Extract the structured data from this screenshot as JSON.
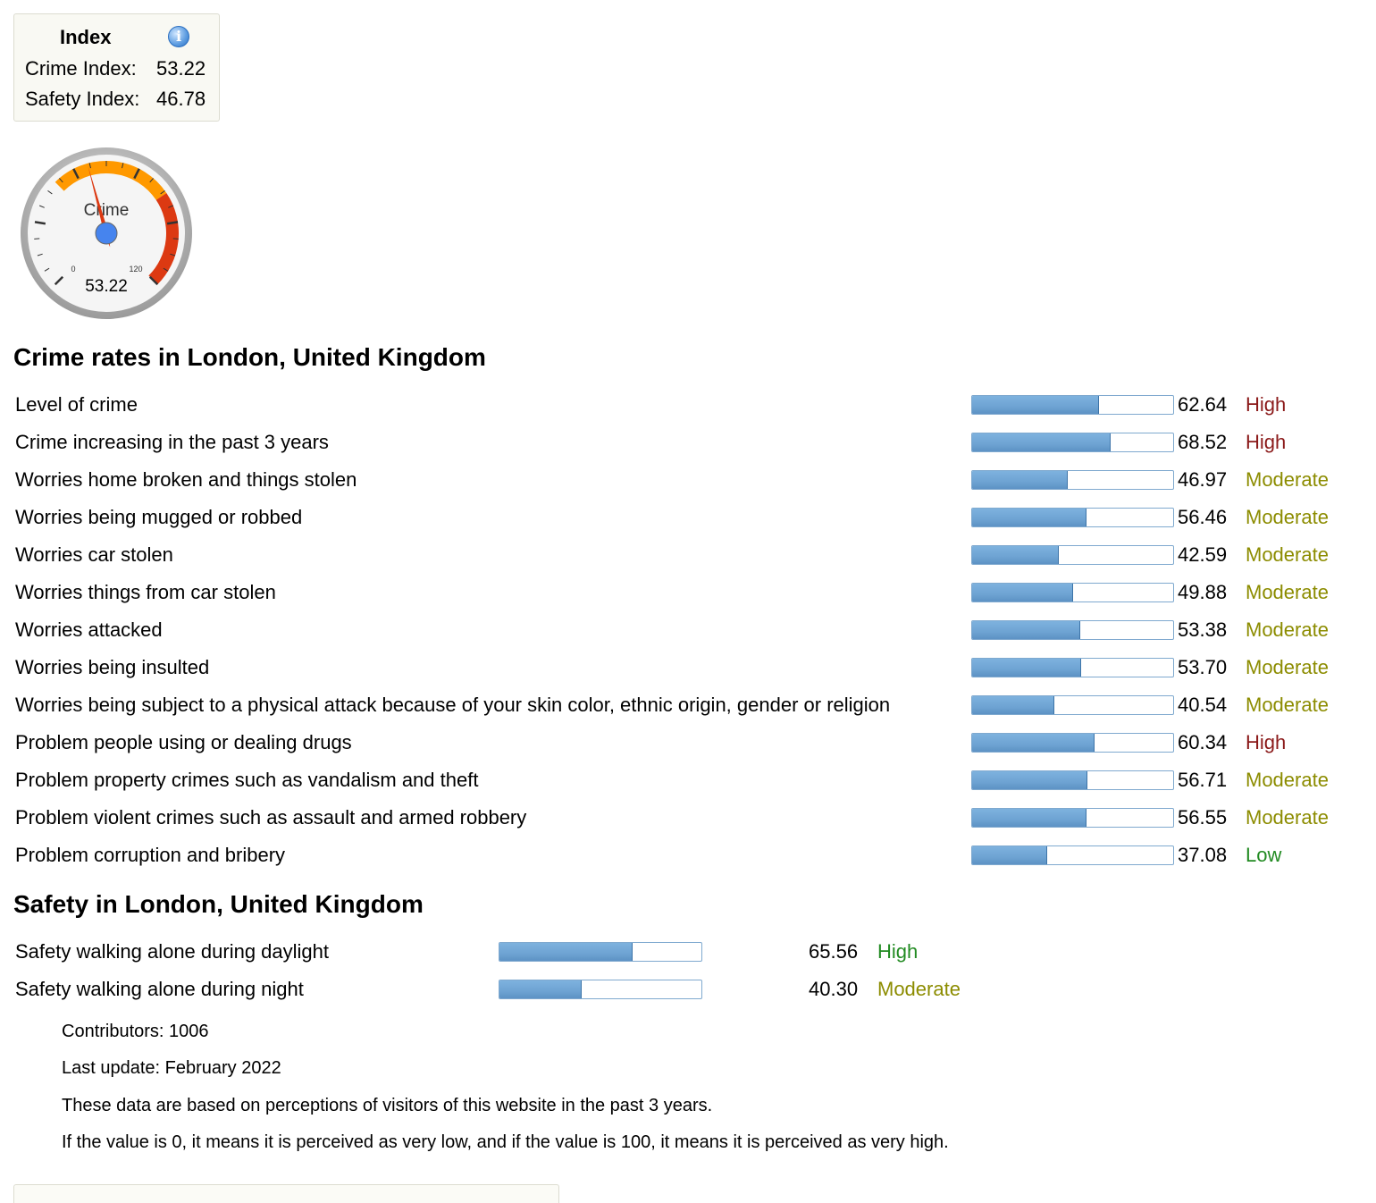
{
  "index": {
    "title": "Index",
    "crime_label": "Crime Index:",
    "crime_value": "53.22",
    "safety_label": "Safety Index:",
    "safety_value": "46.78"
  },
  "gauge": {
    "label": "Crime",
    "min_label": "0",
    "max_label": "120",
    "value_text": "53.22",
    "value": 53.22,
    "min": 0,
    "max": 120,
    "colors": {
      "orange_band": "#ff9900",
      "red_band": "#dc3912",
      "needle": "#dc3912",
      "hub": "#4684ee"
    }
  },
  "crime_section": {
    "title": "Crime rates in London, United Kingdom",
    "rows": [
      {
        "label": "Level of crime",
        "value": "62.64",
        "level": "High"
      },
      {
        "label": "Crime increasing in the past 3 years",
        "value": "68.52",
        "level": "High"
      },
      {
        "label": "Worries home broken and things stolen",
        "value": "46.97",
        "level": "Moderate"
      },
      {
        "label": "Worries being mugged or robbed",
        "value": "56.46",
        "level": "Moderate"
      },
      {
        "label": "Worries car stolen",
        "value": "42.59",
        "level": "Moderate"
      },
      {
        "label": "Worries things from car stolen",
        "value": "49.88",
        "level": "Moderate"
      },
      {
        "label": "Worries attacked",
        "value": "53.38",
        "level": "Moderate"
      },
      {
        "label": "Worries being insulted",
        "value": "53.70",
        "level": "Moderate"
      },
      {
        "label": "Worries being subject to a physical attack because of your skin color, ethnic origin, gender or religion",
        "value": "40.54",
        "level": "Moderate"
      },
      {
        "label": "Problem people using or dealing drugs",
        "value": "60.34",
        "level": "High"
      },
      {
        "label": "Problem property crimes such as vandalism and theft",
        "value": "56.71",
        "level": "Moderate"
      },
      {
        "label": "Problem violent crimes such as assault and armed robbery",
        "value": "56.55",
        "level": "Moderate"
      },
      {
        "label": "Problem corruption and bribery",
        "value": "37.08",
        "level": "Low"
      }
    ]
  },
  "safety_section": {
    "title": "Safety in London, United Kingdom",
    "rows": [
      {
        "label": "Safety walking alone during daylight",
        "value": "65.56",
        "level": "High"
      },
      {
        "label": "Safety walking alone during night",
        "value": "40.30",
        "level": "Moderate"
      }
    ]
  },
  "info": {
    "contributors": "Contributors: 1006",
    "last_update": "Last update: February 2022",
    "note1": "These data are based on perceptions of visitors of this website in the past 3 years.",
    "note2": "If the value is 0, it means it is perceived as very low, and if the value is 100, it means it is perceived as very high."
  },
  "level_colors": {
    "High": "#8b1a1a",
    "Moderate": "#8c8c00",
    "Low": "#228b22",
    "SafetyHigh": "#228b22"
  }
}
